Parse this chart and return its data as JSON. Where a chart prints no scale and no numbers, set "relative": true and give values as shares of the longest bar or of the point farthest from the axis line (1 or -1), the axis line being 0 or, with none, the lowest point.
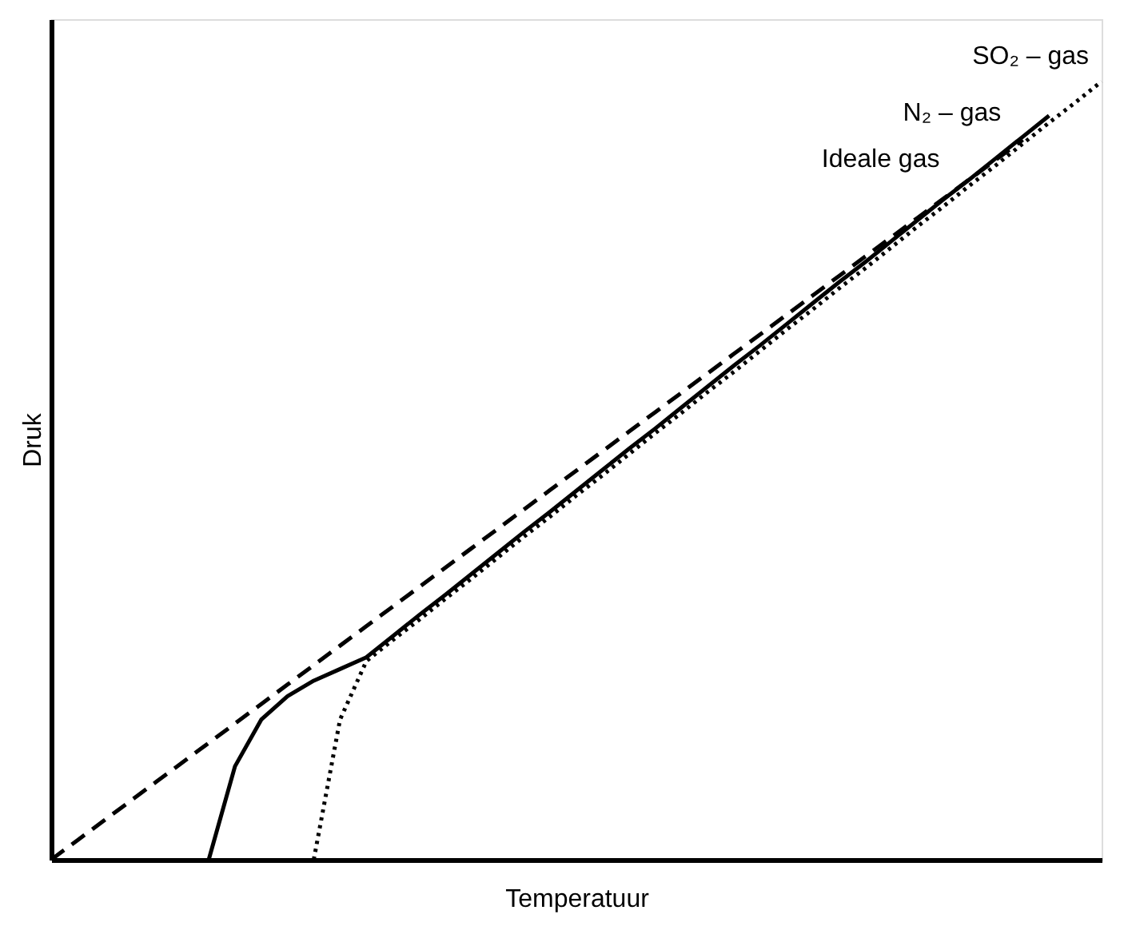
{
  "chart_data": {
    "type": "line",
    "relative": true,
    "xlabel": "Temperatuur",
    "ylabel": "Druk",
    "legend": false,
    "marker": "none",
    "categories": [
      null,
      null,
      null,
      null,
      null,
      null,
      null,
      null,
      null,
      null,
      null,
      null,
      null,
      null,
      null,
      null,
      null,
      null,
      null,
      null,
      null,
      null,
      null,
      null,
      null,
      null,
      null,
      null,
      null,
      null,
      null,
      null,
      null,
      null,
      null,
      null,
      null,
      null,
      null,
      null,
      null
    ],
    "series": [
      {
        "name": "SO₂ – gas",
        "color": "#000000",
        "line_style": "dotted",
        "values": [
          null,
          null,
          null,
          null,
          null,
          null,
          null,
          null,
          null,
          null,
          0,
          0.18,
          0.255,
          0.282,
          0.308,
          0.335,
          0.361,
          0.388,
          0.415,
          0.441,
          0.468,
          0.494,
          0.521,
          0.548,
          0.574,
          0.601,
          0.627,
          0.654,
          0.681,
          0.707,
          0.734,
          0.76,
          0.787,
          0.814,
          0.84,
          0.867,
          0.893,
          0.92,
          0.947,
          0.973,
          1.0
        ]
      },
      {
        "name": "N₂ – gas",
        "color": "#000000",
        "line_style": "solid",
        "values": [
          null,
          null,
          null,
          null,
          null,
          null,
          0,
          0.12,
          0.18,
          0.21,
          0.23,
          0.245,
          0.26,
          0.287,
          0.314,
          0.34,
          0.367,
          0.394,
          0.421,
          0.447,
          0.474,
          0.501,
          0.528,
          0.554,
          0.581,
          0.608,
          0.635,
          0.661,
          0.688,
          0.715,
          0.742,
          0.768,
          0.795,
          0.822,
          0.849,
          0.875,
          0.902,
          0.929,
          0.956,
          null,
          null
        ]
      },
      {
        "name": "Ideale gas",
        "color": "#000000",
        "line_style": "dashed",
        "values": [
          0,
          0.025,
          0.05,
          0.075,
          0.1,
          0.125,
          0.15,
          0.175,
          0.2,
          0.225,
          0.25,
          0.275,
          0.3,
          0.325,
          0.35,
          0.375,
          0.4,
          0.425,
          0.45,
          0.475,
          0.5,
          0.525,
          0.55,
          0.575,
          0.6,
          0.625,
          0.65,
          0.675,
          0.7,
          0.725,
          0.75,
          0.775,
          0.8,
          0.825,
          0.85,
          0.875,
          0.9,
          0.925,
          null,
          null,
          null
        ]
      }
    ]
  }
}
